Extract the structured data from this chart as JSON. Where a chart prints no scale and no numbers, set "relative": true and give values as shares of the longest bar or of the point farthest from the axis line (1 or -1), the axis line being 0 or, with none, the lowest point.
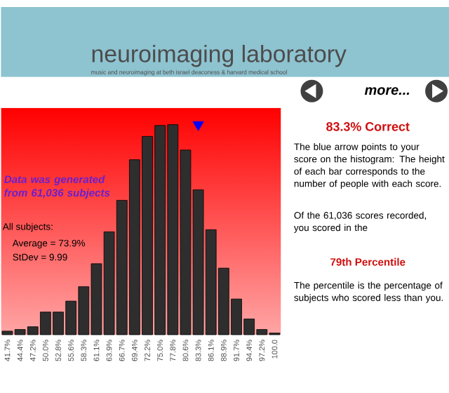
{
  "chart_data": {
    "type": "bar",
    "title": "neuroimaging laboratory",
    "subtitle": "music and neuroimaging at beth israel deaconess & harvard medical school",
    "categories": [
      "41.7%",
      "44.4%",
      "47.2%",
      "50.0%",
      "52.8%",
      "55.6%",
      "58.3%",
      "61.1%",
      "63.9%",
      "66.7%",
      "69.4%",
      "72.2%",
      "75.0%",
      "77.8%",
      "80.6%",
      "83.3%",
      "86.1%",
      "88.9%",
      "91.7%",
      "94.4%",
      "97.2%",
      "100.0"
    ],
    "series": [
      {
        "color": "#2e2e2e",
        "values": [
          0.017,
          0.025,
          0.038,
          0.108,
          0.108,
          0.16,
          0.229,
          0.338,
          0.49,
          0.64,
          0.833,
          0.944,
          0.996,
          1,
          0.879,
          0.69,
          0.5,
          0.317,
          0.17,
          0.075,
          0.025,
          0.008
        ]
      },
      {
        "type": "scatter",
        "color": "#0000ff",
        "marker": "triangle",
        "x": [
          "83.3%"
        ],
        "values": [
          1
        ]
      }
    ],
    "relative": true,
    "tick_labels": "x",
    "annotations": [
      "Data was generated from 61,036 subjects",
      "All subjects:",
      "Average = 73.9%",
      "StDev = 9.99",
      "83.3% Correct",
      "The blue arrow points to your score on the histogram: The height of each bar corresponds to the number of people with each score.",
      "Of the 61,036 scores recorded, you scored in the",
      "79th Percentile",
      "The percentile is the percentage of subjects who scored less than you.",
      "more..."
    ]
  }
}
